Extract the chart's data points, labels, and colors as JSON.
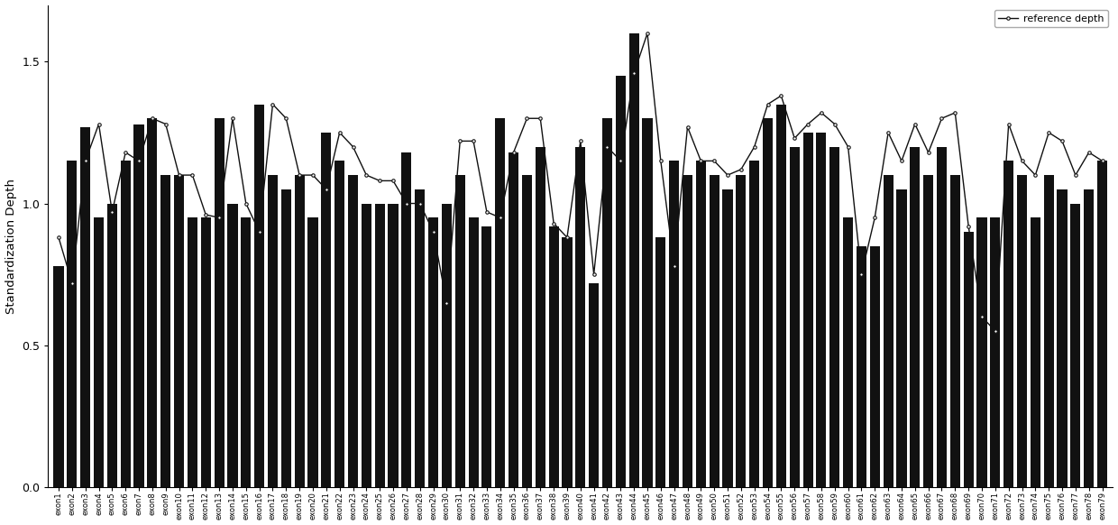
{
  "exons": [
    "exon1",
    "exon2",
    "exon3",
    "exon4",
    "exon5",
    "exon6",
    "exon7",
    "exon8",
    "exon9",
    "exon10",
    "exon11",
    "exon12",
    "exon13",
    "exon14",
    "exon15",
    "exon16",
    "exon17",
    "exon18",
    "exon19",
    "exon20",
    "exon21",
    "exon22",
    "exon23",
    "exon24",
    "exon25",
    "exon26",
    "exon27",
    "exon28",
    "exon29",
    "exon30",
    "exon31",
    "exon32",
    "exon33",
    "exon34",
    "exon35",
    "exon36",
    "exon37",
    "exon38",
    "exon39",
    "exon40",
    "exon41",
    "exon42",
    "exon43",
    "exon44",
    "exon45",
    "exon46",
    "exon47",
    "exon48",
    "exon49",
    "exon50",
    "exon51",
    "exon52",
    "exon53",
    "exon54",
    "exon55",
    "exon56",
    "exon57",
    "exon58",
    "exon59",
    "exon60",
    "exon61",
    "exon62",
    "exon63",
    "exon64",
    "exon65",
    "exon66",
    "exon67",
    "exon68",
    "exon69",
    "exon70",
    "exon71",
    "exon72",
    "exon73",
    "exon74",
    "exon75",
    "exon76",
    "exon77",
    "exon78",
    "exon79"
  ],
  "bar_values": [
    0.78,
    1.15,
    1.27,
    0.95,
    1.0,
    1.15,
    1.28,
    1.3,
    1.1,
    1.1,
    0.95,
    0.95,
    1.3,
    1.0,
    0.95,
    1.35,
    1.1,
    1.05,
    1.1,
    0.95,
    1.25,
    1.15,
    1.1,
    1.0,
    1.0,
    1.0,
    1.18,
    1.05,
    0.95,
    1.0,
    1.1,
    0.95,
    0.92,
    1.3,
    1.18,
    1.1,
    1.2,
    0.92,
    0.88,
    1.2,
    0.72,
    1.3,
    1.45,
    1.6,
    1.3,
    0.88,
    1.15,
    1.1,
    1.15,
    1.1,
    1.05,
    1.1,
    1.15,
    1.3,
    1.35,
    1.2,
    1.25,
    1.25,
    1.2,
    0.95,
    0.85,
    0.85,
    1.1,
    1.05,
    1.2,
    1.1,
    1.2,
    1.1,
    0.9,
    0.95,
    0.95,
    1.15,
    1.1,
    0.95,
    1.1,
    1.05,
    1.0,
    1.05,
    1.15
  ],
  "line_values": [
    0.88,
    0.72,
    1.15,
    1.28,
    0.97,
    1.18,
    1.15,
    1.3,
    1.28,
    1.1,
    1.1,
    0.96,
    0.95,
    1.3,
    1.0,
    0.9,
    1.35,
    1.3,
    1.1,
    1.1,
    1.05,
    1.25,
    1.2,
    1.1,
    1.08,
    1.08,
    1.0,
    1.0,
    0.9,
    0.65,
    1.22,
    1.22,
    0.97,
    0.95,
    1.18,
    1.3,
    1.3,
    0.93,
    0.88,
    1.22,
    0.75,
    1.2,
    1.15,
    1.46,
    1.6,
    1.15,
    0.78,
    1.27,
    1.15,
    1.15,
    1.1,
    1.12,
    1.2,
    1.35,
    1.38,
    1.23,
    1.28,
    1.32,
    1.28,
    1.2,
    0.75,
    0.95,
    1.25,
    1.15,
    1.28,
    1.18,
    1.3,
    1.32,
    0.92,
    0.6,
    0.55,
    1.28,
    1.15,
    1.1,
    1.25,
    1.22,
    1.1,
    1.18,
    1.15
  ],
  "bar_color": "#111111",
  "line_color": "#111111",
  "ylabel": "Standardization Depth",
  "ylim": [
    0.0,
    1.7
  ],
  "yticks": [
    0.0,
    0.5,
    1.0,
    1.5
  ],
  "ytick_labels": [
    "0.0",
    "0.5",
    "1.0",
    "1.5"
  ],
  "legend_label": "reference depth",
  "background_color": "#ffffff"
}
